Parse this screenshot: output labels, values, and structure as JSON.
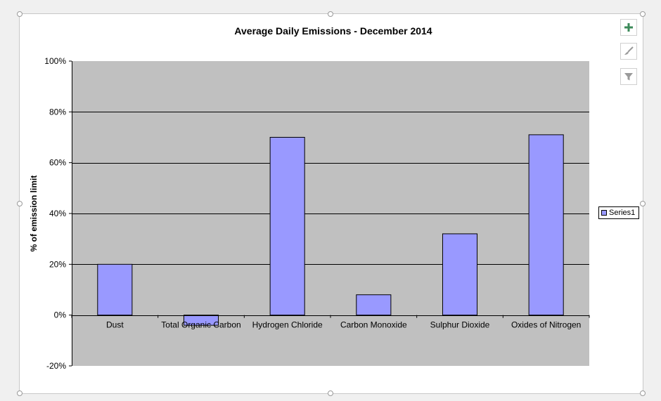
{
  "chart_data": {
    "type": "bar",
    "title": "Average Daily Emissions - December 2014",
    "xlabel": "",
    "ylabel": "% of emission limit",
    "categories": [
      "Dust",
      "Total Organic Carbon",
      "Hydrogen Chloride",
      "Carbon Monoxide",
      "Sulphur Dioxide",
      "Oxides of Nitrogen"
    ],
    "series": [
      {
        "name": "Series1",
        "values": [
          0.2,
          -0.04,
          0.7,
          0.08,
          0.32,
          0.71
        ]
      }
    ],
    "ylim": [
      -0.2,
      1.0
    ],
    "yticks": [
      -0.2,
      0.0,
      0.2,
      0.4,
      0.6,
      0.8,
      1.0
    ],
    "ytick_labels": [
      "-20%",
      "0%",
      "20%",
      "40%",
      "60%",
      "80%",
      "100%"
    ],
    "grid": true,
    "legend_position": "right",
    "bar_color": "#9999ff",
    "plot_background": "#c0c0c0"
  },
  "tools": {
    "add_icon": "plus-icon",
    "style_icon": "brush-icon",
    "filter_icon": "filter-icon"
  }
}
